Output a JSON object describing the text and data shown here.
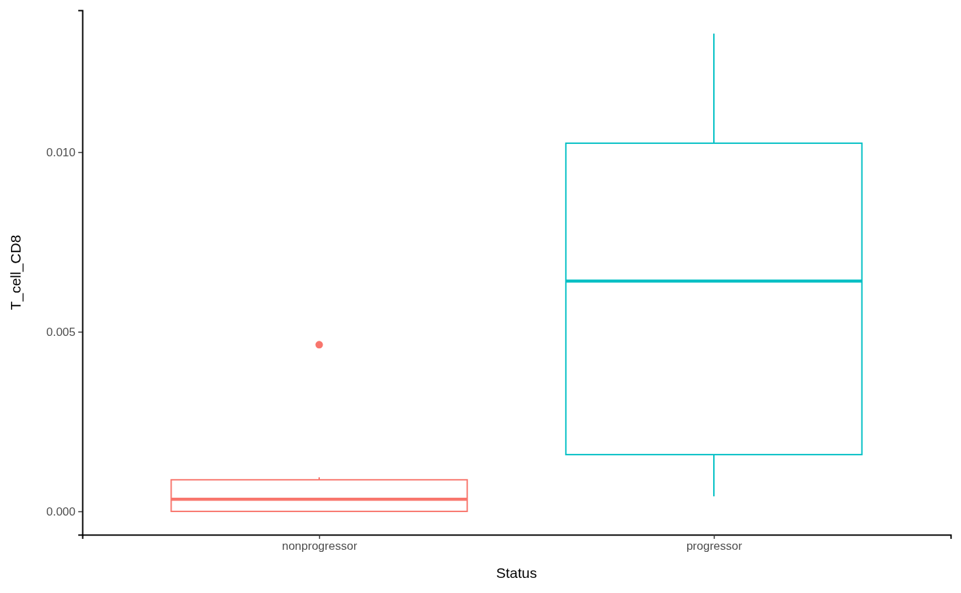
{
  "chart_data": {
    "type": "box",
    "xlabel": "Status",
    "ylabel": "T_cell_CD8",
    "categories": [
      "nonprogressor",
      "progressor"
    ],
    "colors": [
      "#f8766d",
      "#00bfc4"
    ],
    "boxes": [
      {
        "low": 0.0,
        "q1": 0.0,
        "median": 0.00034,
        "q3": 0.00088,
        "high": 0.00095,
        "outliers": [
          0.00464
        ]
      },
      {
        "low": 0.00042,
        "q1": 0.00158,
        "median": 0.00641,
        "q3": 0.01025,
        "high": 0.0133
      }
    ],
    "ylim": [
      -0.00065,
      0.01395
    ],
    "yticks": [
      {
        "value": 0,
        "label": "0.000"
      },
      {
        "value": 0.005,
        "label": "0.005"
      },
      {
        "value": 0.01,
        "label": "0.010"
      }
    ],
    "grid": false
  }
}
